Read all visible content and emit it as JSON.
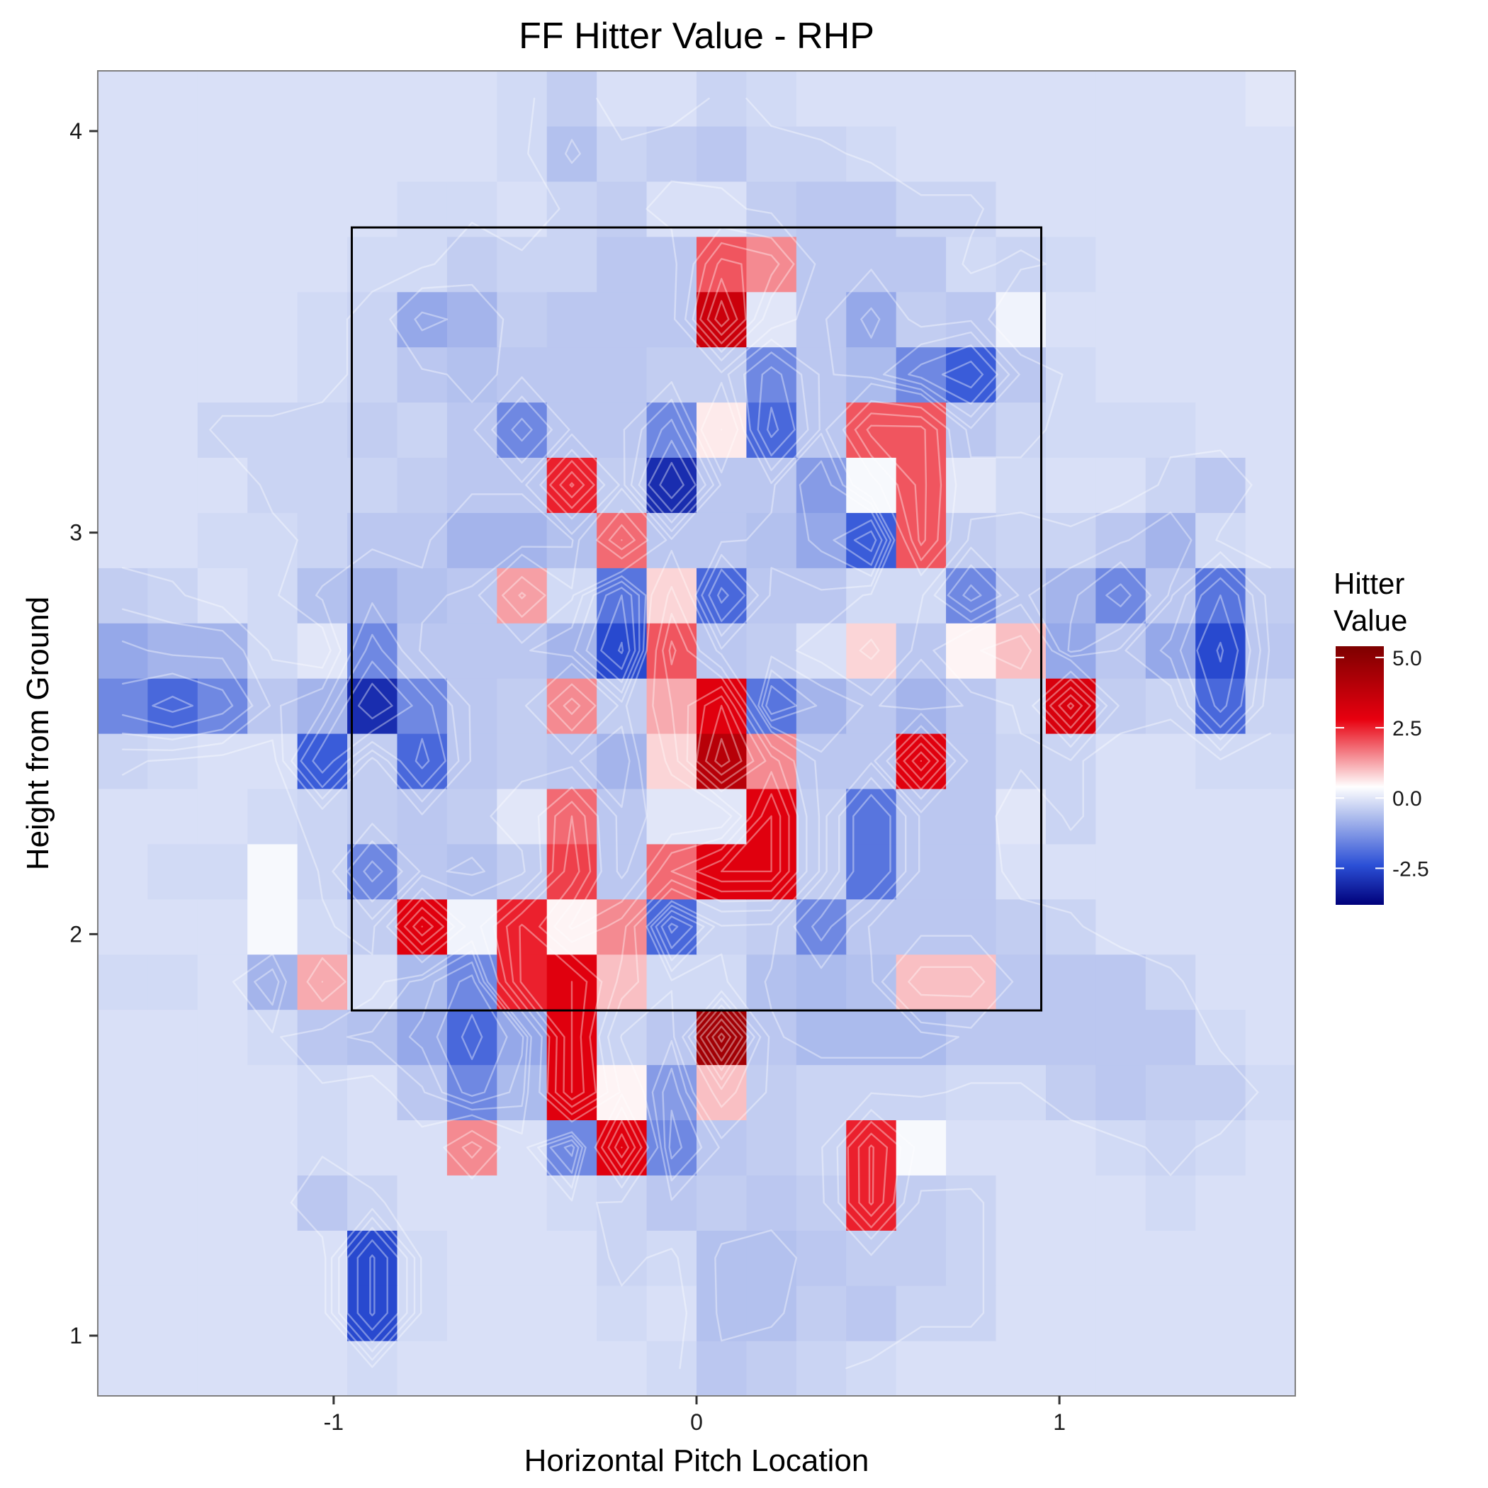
{
  "chart_data": {
    "type": "heatmap",
    "title": "FF Hitter Value - RHP",
    "xlabel": "Horizontal Pitch Location",
    "ylabel": "Height from Ground",
    "xlim": [
      -1.65,
      1.65
    ],
    "ylim": [
      0.85,
      4.15
    ],
    "x_ticks": [
      -1,
      0,
      1
    ],
    "y_ticks": [
      1,
      2,
      3,
      4
    ],
    "x_tick_labels": [
      "-1",
      "0",
      "1"
    ],
    "y_tick_labels": [
      "1",
      "2",
      "3",
      "4"
    ],
    "legend": {
      "title_lines": [
        "Hitter",
        "Value"
      ],
      "placement": "right",
      "min": -3.8,
      "max": 5.4,
      "ticks": [
        5.0,
        2.5,
        0.0,
        -2.5
      ],
      "tick_labels": [
        "5.0",
        "2.5",
        "0.0",
        "-2.5"
      ],
      "colors": {
        "low": "#00007a",
        "midlow": "#2b4fd6",
        "mid_blue": "#b3c1ee",
        "mid": "#ffffff",
        "high": "#e8000f",
        "top": "#7d0000"
      }
    },
    "strike_zone": {
      "x": [
        -0.95,
        0.95
      ],
      "y": [
        1.81,
        3.76
      ]
    },
    "grid": {
      "x_start": -1.65,
      "x_step": 0.1375,
      "y_start": 0.85,
      "y_step": 0.1375,
      "cols": 24,
      "rows": 24,
      "note_rows_from": "bottom"
    },
    "values": [
      [
        -0.1,
        -0.1,
        -0.1,
        -0.1,
        -0.1,
        -0.2,
        -0.1,
        -0.1,
        -0.1,
        -0.1,
        -0.1,
        -0.2,
        -0.5,
        -0.4,
        -0.3,
        -0.2,
        -0.1,
        -0.1,
        -0.1,
        -0.1,
        -0.1,
        -0.1,
        -0.1,
        -0.1
      ],
      [
        -0.1,
        -0.1,
        -0.1,
        -0.1,
        -0.1,
        -2.5,
        -0.2,
        -0.1,
        -0.1,
        -0.1,
        -0.2,
        -0.1,
        -0.6,
        -0.6,
        -0.4,
        -0.5,
        -0.3,
        -0.3,
        -0.1,
        -0.1,
        -0.1,
        -0.1,
        -0.1,
        -0.1
      ],
      [
        -0.1,
        -0.1,
        -0.1,
        -0.1,
        -0.1,
        -2.5,
        -0.2,
        -0.1,
        -0.1,
        -0.1,
        -0.3,
        -0.2,
        -0.6,
        -0.6,
        -0.5,
        -0.4,
        -0.4,
        -0.3,
        -0.1,
        -0.1,
        -0.1,
        -0.1,
        -0.1,
        -0.1
      ],
      [
        -0.1,
        -0.1,
        -0.1,
        -0.1,
        -0.5,
        -0.3,
        -0.1,
        -0.1,
        -0.1,
        -0.2,
        -0.3,
        -0.5,
        -0.4,
        -0.5,
        -0.4,
        2.5,
        -0.4,
        -0.3,
        -0.1,
        -0.1,
        -0.1,
        -0.2,
        -0.1,
        -0.1
      ],
      [
        -0.1,
        -0.1,
        -0.1,
        -0.1,
        -0.2,
        -0.1,
        -0.1,
        1.5,
        -0.1,
        -1.5,
        3.0,
        -1.5,
        -0.5,
        -0.4,
        -0.3,
        2.5,
        0.3,
        -0.1,
        -0.1,
        -0.1,
        -0.2,
        -0.3,
        -0.2,
        -0.1
      ],
      [
        -0.1,
        -0.1,
        -0.1,
        -0.1,
        -0.2,
        -0.1,
        -0.5,
        -1.5,
        -0.7,
        3.0,
        0.5,
        -1.2,
        1.0,
        -0.4,
        -0.3,
        -0.3,
        -0.3,
        -0.2,
        -0.2,
        -0.4,
        -0.5,
        -0.4,
        -0.4,
        -0.2
      ],
      [
        -0.1,
        -0.1,
        -0.1,
        -0.2,
        -0.5,
        -0.6,
        -1.0,
        -2.0,
        -1.0,
        3.0,
        -0.3,
        -0.5,
        4.5,
        -0.5,
        -0.7,
        -0.7,
        -0.7,
        -0.5,
        -0.5,
        -0.5,
        -0.5,
        -0.5,
        -0.2,
        -0.1
      ],
      [
        -0.2,
        -0.2,
        -0.1,
        -0.8,
        1.2,
        -0.1,
        -0.7,
        -1.5,
        2.5,
        3.0,
        1.0,
        -0.2,
        -0.2,
        -0.6,
        -0.7,
        -0.6,
        1.0,
        1.0,
        -0.5,
        -0.5,
        -0.5,
        -0.3,
        -0.1,
        -0.1
      ],
      [
        -0.1,
        -0.1,
        -0.1,
        0.3,
        -0.2,
        -0.4,
        3.0,
        0.2,
        2.5,
        0.5,
        1.5,
        -2.0,
        -0.3,
        -0.4,
        -1.5,
        -0.5,
        -0.5,
        -0.5,
        -0.4,
        -0.3,
        -0.1,
        -0.1,
        -0.1,
        -0.1
      ],
      [
        -0.1,
        -0.2,
        -0.2,
        0.3,
        -0.3,
        -1.5,
        -0.5,
        -0.6,
        -0.4,
        2.2,
        -0.5,
        1.8,
        3.0,
        3.0,
        -0.4,
        -1.8,
        -0.5,
        -0.5,
        -0.1,
        -0.1,
        -0.1,
        -0.1,
        -0.1,
        -0.1
      ],
      [
        -0.1,
        -0.1,
        -0.1,
        -0.2,
        -0.3,
        -0.4,
        -0.5,
        -0.4,
        0.0,
        1.8,
        -0.5,
        0.0,
        0.0,
        3.0,
        -0.4,
        -1.8,
        -0.5,
        -0.5,
        0.0,
        -0.3,
        -0.1,
        -0.1,
        -0.1,
        -0.1
      ],
      [
        -0.3,
        -0.2,
        -0.1,
        -0.1,
        -2.2,
        -0.4,
        -2.0,
        -0.5,
        -0.4,
        -0.5,
        -0.8,
        0.8,
        4.0,
        1.5,
        -0.5,
        -0.5,
        3.0,
        -0.5,
        -0.3,
        -0.3,
        -0.1,
        -0.1,
        -0.2,
        -0.2
      ],
      [
        -1.5,
        -2.0,
        -1.5,
        -0.5,
        -0.8,
        -3.0,
        -1.5,
        -0.5,
        -0.4,
        1.5,
        -0.4,
        1.2,
        3.0,
        -1.8,
        -0.8,
        -0.5,
        -0.8,
        -0.5,
        -0.2,
        3.2,
        -0.4,
        -0.3,
        -2.0,
        -0.3
      ],
      [
        -1.0,
        -0.8,
        -0.8,
        -0.2,
        0.0,
        -1.5,
        -0.5,
        -0.5,
        -0.5,
        -0.8,
        -2.5,
        2.0,
        -0.5,
        -0.4,
        -0.1,
        0.8,
        -0.5,
        0.5,
        1.0,
        -1.0,
        -0.5,
        -1.0,
        -2.5,
        -0.5
      ],
      [
        -0.4,
        -0.3,
        -0.1,
        -0.2,
        -0.6,
        -0.8,
        -0.6,
        -0.5,
        1.3,
        -0.2,
        -1.8,
        0.8,
        -2.0,
        -0.5,
        -0.5,
        -0.2,
        -0.2,
        -1.5,
        -0.5,
        -0.8,
        -1.5,
        -0.5,
        -1.8,
        -0.4
      ],
      [
        -0.1,
        -0.1,
        -0.2,
        -0.2,
        -0.3,
        -0.5,
        -0.5,
        -0.8,
        -0.8,
        -0.6,
        1.8,
        -0.5,
        -0.5,
        -0.6,
        -1.0,
        -2.2,
        2.0,
        -0.4,
        -0.3,
        -0.3,
        -0.5,
        -0.8,
        -0.2,
        -0.1
      ],
      [
        -0.1,
        -0.1,
        -0.1,
        -0.3,
        -0.3,
        -0.3,
        -0.4,
        -0.5,
        -0.5,
        2.5,
        -0.4,
        -3.0,
        -0.5,
        -0.5,
        -1.2,
        0.3,
        2.0,
        0.0,
        -0.2,
        -0.1,
        -0.1,
        -0.3,
        -0.5,
        -0.1
      ],
      [
        -0.1,
        -0.1,
        -0.3,
        -0.3,
        -0.3,
        -0.4,
        -0.3,
        -0.5,
        -1.5,
        -0.5,
        -0.5,
        -1.5,
        0.6,
        -2.0,
        -0.5,
        2.0,
        2.0,
        -0.5,
        -0.3,
        -0.2,
        -0.2,
        -0.2,
        -0.1,
        -0.1
      ],
      [
        -0.1,
        -0.1,
        -0.1,
        -0.1,
        -0.2,
        -0.3,
        -0.5,
        -0.6,
        -0.5,
        -0.5,
        -0.5,
        -0.4,
        -0.4,
        -1.5,
        -0.5,
        -0.7,
        -1.5,
        -2.2,
        -0.5,
        -0.2,
        -0.1,
        -0.1,
        -0.1,
        -0.1
      ],
      [
        -0.1,
        -0.1,
        -0.1,
        -0.1,
        -0.2,
        -0.3,
        -1.0,
        -0.8,
        -0.4,
        -0.5,
        -0.5,
        -0.5,
        3.5,
        0.0,
        -0.5,
        -1.0,
        -0.4,
        -0.5,
        0.2,
        -0.1,
        -0.1,
        -0.1,
        -0.1,
        -0.1
      ],
      [
        -0.1,
        -0.1,
        -0.1,
        -0.1,
        -0.1,
        -0.2,
        -0.2,
        -0.4,
        -0.3,
        -0.3,
        -0.5,
        -0.5,
        2.0,
        1.5,
        -0.5,
        -0.5,
        -0.5,
        -0.2,
        -0.3,
        -0.2,
        -0.1,
        -0.1,
        -0.1,
        -0.1
      ],
      [
        -0.1,
        -0.1,
        -0.1,
        -0.1,
        -0.1,
        -0.1,
        -0.2,
        -0.2,
        -0.1,
        -0.3,
        -0.4,
        -0.1,
        -0.1,
        -0.4,
        -0.5,
        -0.5,
        -0.3,
        -0.3,
        -0.1,
        -0.1,
        -0.1,
        -0.1,
        -0.1,
        -0.1
      ],
      [
        -0.1,
        -0.1,
        -0.1,
        -0.1,
        -0.1,
        -0.1,
        -0.1,
        -0.1,
        -0.2,
        -0.6,
        -0.3,
        -0.4,
        -0.5,
        -0.3,
        -0.3,
        -0.2,
        -0.1,
        -0.1,
        -0.1,
        -0.1,
        -0.1,
        -0.1,
        -0.1,
        -0.1
      ],
      [
        -0.1,
        -0.1,
        -0.1,
        -0.1,
        -0.1,
        -0.1,
        -0.1,
        -0.1,
        -0.2,
        -0.4,
        -0.1,
        -0.1,
        -0.3,
        -0.2,
        -0.1,
        -0.1,
        -0.1,
        -0.1,
        -0.1,
        -0.1,
        -0.1,
        -0.1,
        -0.1,
        0.0
      ]
    ]
  }
}
